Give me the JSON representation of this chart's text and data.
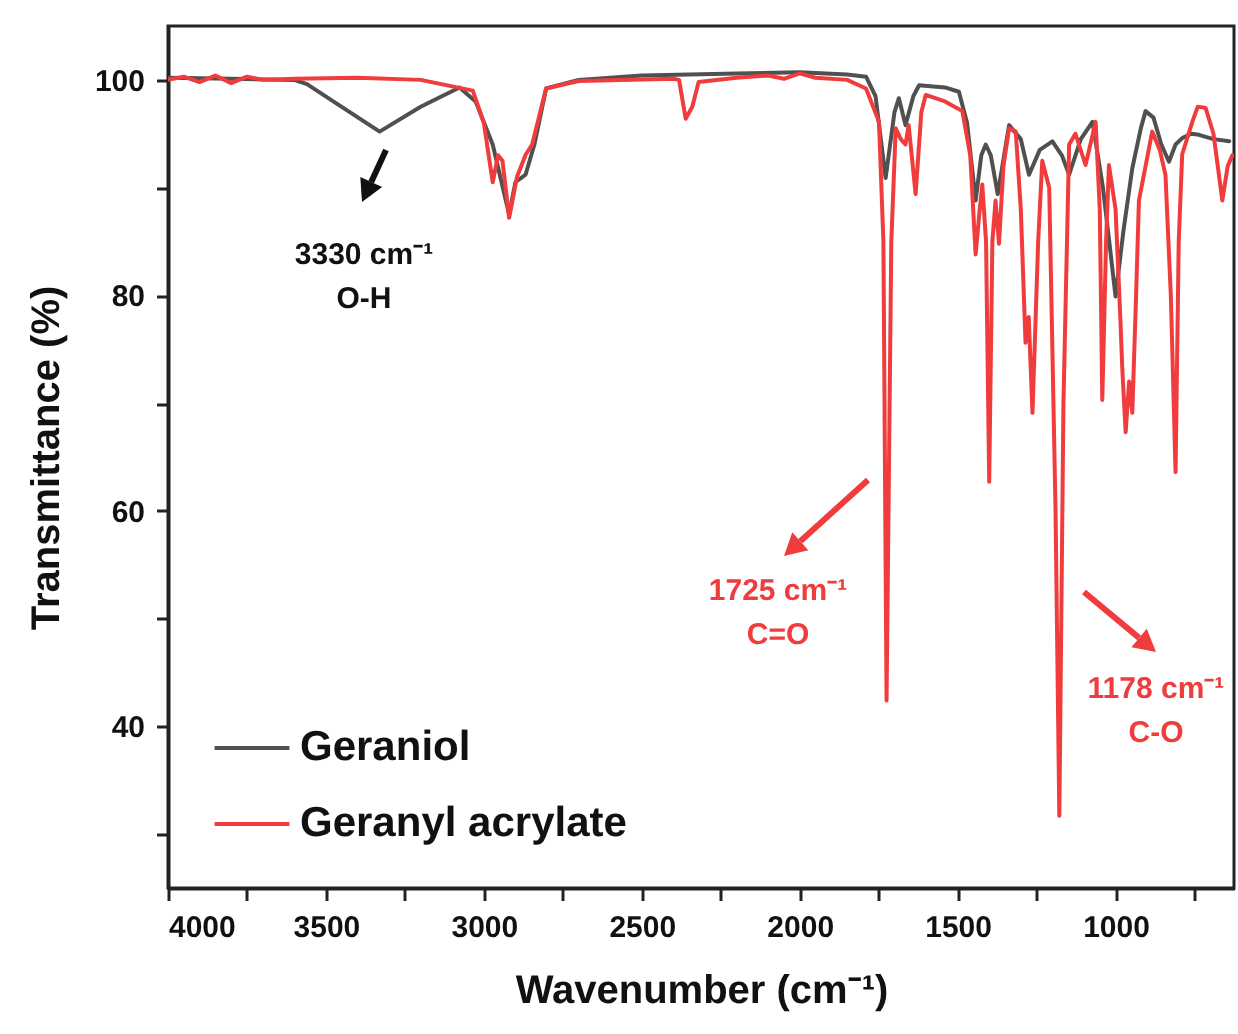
{
  "chart_data": {
    "type": "line",
    "xlabel": "Wavenumber (cm⁻¹)",
    "ylabel": "Transmittance (%)",
    "xlim": [
      4000,
      625
    ],
    "ylim": [
      25,
      105
    ],
    "xticks": [
      4000,
      {
        "value": 3750,
        "label": null
      },
      3500,
      {
        "value": 3250,
        "label": null
      },
      3000,
      {
        "value": 2750,
        "label": null
      },
      2500,
      {
        "value": 2250,
        "label": null
      },
      2000,
      {
        "value": 1750,
        "label": null
      },
      1500,
      {
        "value": 1250,
        "label": null
      },
      1000,
      {
        "value": 750,
        "label": null
      }
    ],
    "yticks": [
      {
        "value": 30,
        "label": null
      },
      40,
      {
        "value": 50,
        "label": null
      },
      60,
      {
        "value": 70,
        "label": null
      },
      80,
      {
        "value": 90,
        "label": null
      },
      100
    ],
    "grid": false,
    "legend": "bottom left",
    "line_style": "solid",
    "series": [
      {
        "name": "Geraniol",
        "color": "#505050",
        "x": [
          4000,
          3800,
          3600,
          3560,
          3450,
          3330,
          3200,
          3077,
          3026,
          2972,
          2920,
          2900,
          2868,
          2840,
          2803,
          2700,
          2500,
          2200,
          2000,
          1850,
          1790,
          1760,
          1728,
          1700,
          1686,
          1665,
          1640,
          1622,
          1540,
          1496,
          1470,
          1443,
          1425,
          1411,
          1395,
          1373,
          1337,
          1300,
          1274,
          1240,
          1200,
          1170,
          1147,
          1110,
          1073,
          1040,
          1020,
          1000,
          975,
          947,
          920,
          905,
          880,
          855,
          831,
          810,
          789,
          760,
          736,
          690,
          640
        ],
        "values": [
          100.2,
          100.1,
          100,
          99.6,
          97.5,
          95.2,
          97.5,
          99.3,
          98,
          94,
          87.5,
          90.5,
          91.2,
          94,
          99.2,
          100,
          100.4,
          100.6,
          100.7,
          100.5,
          100.3,
          98.5,
          90.9,
          97,
          98.3,
          95.8,
          98.5,
          99.5,
          99.3,
          98.9,
          96,
          88.8,
          93,
          94,
          93,
          89.4,
          95.8,
          94.5,
          91.2,
          93.5,
          94.3,
          93,
          91.2,
          94.5,
          96.1,
          90,
          85,
          79.9,
          86,
          91.8,
          95.5,
          97.1,
          96.5,
          94,
          92.4,
          94,
          94.6,
          95,
          94.9,
          94.5,
          94.3
        ]
      },
      {
        "name": "Geranyl acrylate",
        "color": "#f03c3c",
        "x": [
          4000,
          3950,
          3900,
          3850,
          3800,
          3750,
          3700,
          3600,
          3400,
          3200,
          3035,
          3000,
          2972,
          2955,
          2941,
          2920,
          2895,
          2867,
          2847,
          2803,
          2700,
          2400,
          2382,
          2361,
          2340,
          2320,
          2200,
          2100,
          2050,
          2000,
          1950,
          1850,
          1790,
          1749,
          1735,
          1725,
          1710,
          1696,
          1680,
          1665,
          1655,
          1633,
          1615,
          1601,
          1540,
          1485,
          1460,
          1443,
          1430,
          1422,
          1410,
          1400,
          1390,
          1380,
          1369,
          1355,
          1337,
          1316,
          1300,
          1285,
          1275,
          1263,
          1245,
          1232,
          1210,
          1190,
          1178,
          1165,
          1147,
          1127,
          1095,
          1063,
          1050,
          1042,
          1030,
          1021,
          1000,
          985,
          979,
          968,
          957,
          947,
          935,
          926,
          884,
          860,
          842,
          825,
          810,
          800,
          789,
          757,
          740,
          715,
          690,
          662,
          645,
          630
        ],
        "values": [
          100,
          100.3,
          99.8,
          100.4,
          99.7,
          100.3,
          100,
          100.1,
          100.2,
          100,
          99,
          96,
          90.5,
          93,
          92.5,
          87.2,
          91,
          93.1,
          94,
          99.2,
          99.9,
          100.1,
          100,
          96.4,
          97.5,
          99.8,
          100.2,
          100.4,
          100.1,
          100.6,
          100.2,
          100,
          99.2,
          96.1,
          85,
          42.4,
          85,
          95.5,
          94.5,
          94,
          95.8,
          89.4,
          97,
          98.6,
          98,
          97.1,
          93,
          83.8,
          88,
          90.3,
          85,
          62.7,
          85,
          88.8,
          84.8,
          92,
          95.5,
          95.2,
          88,
          75.6,
          78,
          69.1,
          85,
          92.5,
          90,
          60,
          31.7,
          70,
          94,
          95,
          92.1,
          96.1,
          88,
          70.3,
          85,
          92.1,
          88,
          78,
          73.4,
          67.3,
          72,
          69.1,
          80,
          88.8,
          95.2,
          93.5,
          91.2,
          80,
          63.6,
          85,
          93.1,
          96.1,
          97.5,
          97.4,
          95,
          88.8,
          92,
          93
        ]
      }
    ],
    "annotations": [
      "3330 cm⁻¹\nO-H",
      "1725 cm⁻¹\nC=O",
      "1178 cm⁻¹\nC-O"
    ]
  }
}
